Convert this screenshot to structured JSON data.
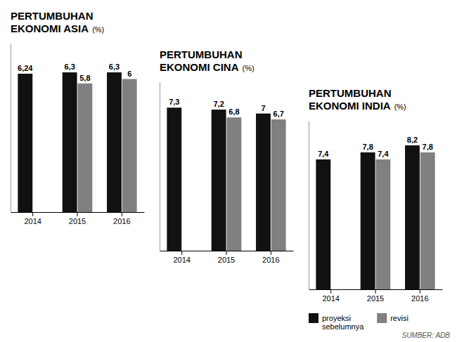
{
  "chart_data": [
    {
      "type": "bar",
      "title": "PERTUMBUHAN\nEKONOMI ASIA",
      "subtitle": "(%)",
      "categories": [
        "2014",
        "2015",
        "2016"
      ],
      "series": [
        {
          "color": "#111111",
          "values": [
            6.24,
            6.3,
            6.3
          ],
          "value_labels": [
            "6,24",
            "6,3",
            "6,3"
          ]
        },
        {
          "color": "#808080",
          "values": [
            null,
            5.8,
            6.0
          ],
          "value_labels": [
            null,
            "5,8",
            "6"
          ]
        }
      ],
      "ylim": [
        0,
        7.6
      ],
      "grid": false,
      "data_labels": true,
      "tick_labels": "x"
    },
    {
      "type": "bar",
      "title": "PERTUMBUHAN\nEKONOMI CINA",
      "subtitle": "(%)",
      "categories": [
        "2014",
        "2015",
        "2016"
      ],
      "series": [
        {
          "color": "#111111",
          "values": [
            7.3,
            7.2,
            7.0
          ],
          "value_labels": [
            "7,3",
            "7,2",
            "7"
          ]
        },
        {
          "color": "#808080",
          "values": [
            null,
            6.8,
            6.7
          ],
          "value_labels": [
            null,
            "6,8",
            "6,7"
          ]
        }
      ],
      "ylim": [
        0,
        8.6
      ],
      "grid": false,
      "data_labels": true,
      "tick_labels": "x"
    },
    {
      "type": "bar",
      "title": "PERTUMBUHAN\nEKONOMI INDIA",
      "subtitle": "(%)",
      "categories": [
        "2014",
        "2015",
        "2016"
      ],
      "series": [
        {
          "name": "proyeksi\nsebelumnya",
          "color": "#111111",
          "values": [
            7.4,
            7.8,
            8.2
          ],
          "value_labels": [
            "7,4",
            "7,8",
            "8,2"
          ]
        },
        {
          "name": "revisi",
          "color": "#808080",
          "values": [
            null,
            7.4,
            7.8
          ],
          "value_labels": [
            null,
            "7,4",
            "7,8"
          ]
        }
      ],
      "ylim": [
        0,
        9.6
      ],
      "grid": false,
      "data_labels": true,
      "tick_labels": "x",
      "legend": "bottom",
      "annotations": [
        "SUMBER: ADB"
      ]
    }
  ]
}
